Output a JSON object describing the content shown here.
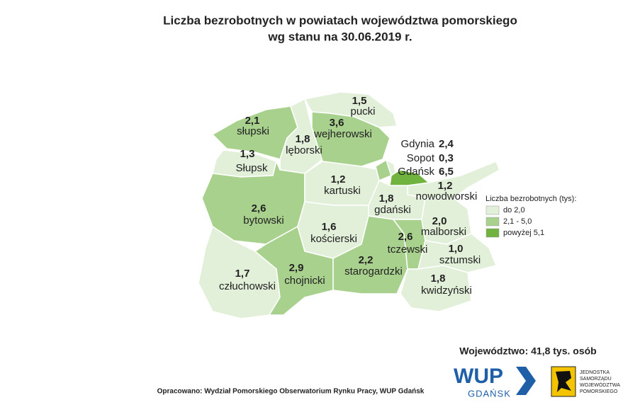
{
  "header": {
    "title": "Liczba bezrobotnych w powiatach województwa pomorskiego",
    "subtitle": "wg stanu na 30.06.2019 r."
  },
  "regions": [
    {
      "name": "słupski",
      "value": "2,1",
      "class": 1
    },
    {
      "name": "Słupsk",
      "value": "1,3",
      "class": 0
    },
    {
      "name": "lęborski",
      "value": "1,8",
      "class": 0
    },
    {
      "name": "pucki",
      "value": "1,5",
      "class": 0
    },
    {
      "name": "wejherowski",
      "value": "3,6",
      "class": 1
    },
    {
      "name": "bytowski",
      "value": "2,6",
      "class": 1
    },
    {
      "name": "kartuski",
      "value": "1,2",
      "class": 0
    },
    {
      "name": "nowodworski",
      "value": "1,2",
      "class": 0
    },
    {
      "name": "gdański",
      "value": "1,8",
      "class": 0
    },
    {
      "name": "kościerski",
      "value": "1,6",
      "class": 0
    },
    {
      "name": "człuchowski",
      "value": "1,7",
      "class": 0
    },
    {
      "name": "chojnicki",
      "value": "2,9",
      "class": 1
    },
    {
      "name": "starogardzki",
      "value": "2,2",
      "class": 1
    },
    {
      "name": "tczewski",
      "value": "2,6",
      "class": 1
    },
    {
      "name": "malborski",
      "value": "2,0",
      "class": 0
    },
    {
      "name": "sztumski",
      "value": "1,0",
      "class": 0
    },
    {
      "name": "kwidzyński",
      "value": "1,8",
      "class": 0
    },
    {
      "name": "Gdynia",
      "value": "2,4",
      "class": 1
    },
    {
      "name": "Sopot",
      "value": "0,3",
      "class": 0
    },
    {
      "name": "Gdańsk",
      "value": "6,5",
      "class": 2
    }
  ],
  "legend": {
    "title": "Liczba bezrobotnych (tys):",
    "classes": [
      {
        "label": "do 2,0",
        "color": "#e2efd9"
      },
      {
        "label": "2,1 - 5,0",
        "color": "#a9d18e"
      },
      {
        "label": "powyżej 5,1",
        "color": "#70b33f"
      }
    ]
  },
  "total": "Województwo: 41,8 tys. osób",
  "source": "Opracowano: Wydział Pomorskiego Obserwatorium Rynku Pracy, WUP Gdańsk",
  "logos": {
    "wup": "WUP",
    "wup_city": "GDAŃSK",
    "jst": [
      "JEDNOSTKA",
      "SAMORZĄDU",
      "WOJEWÓDZTWA",
      "POMORSKIEGO"
    ]
  }
}
